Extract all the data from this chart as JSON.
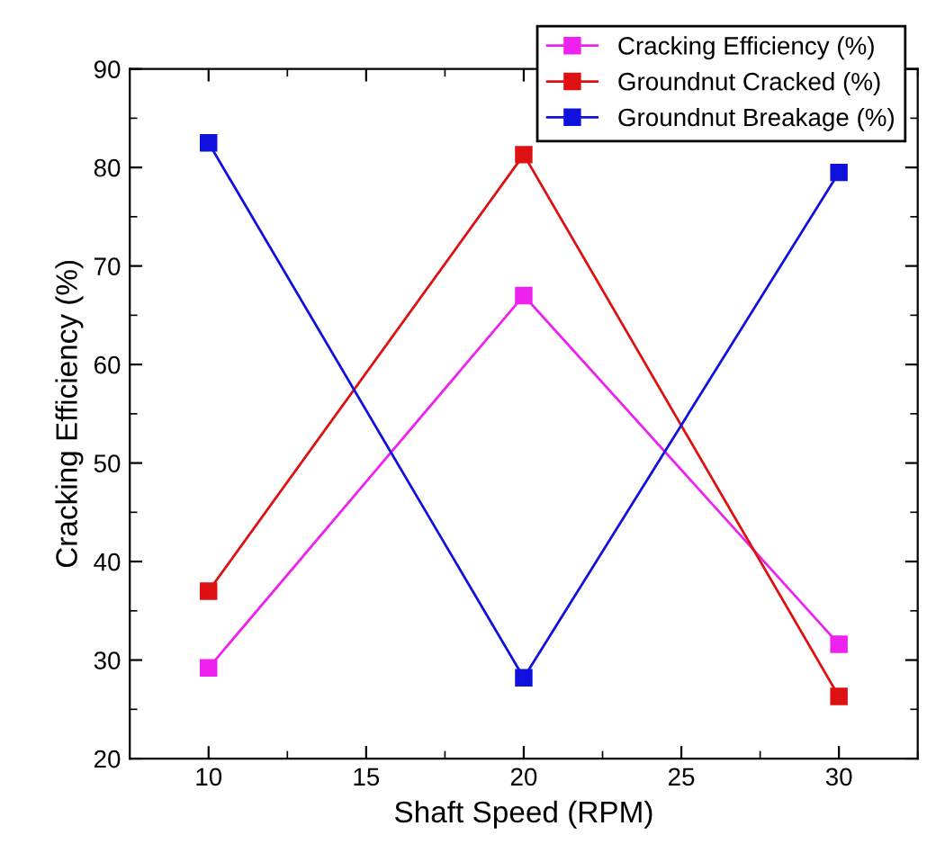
{
  "chart_data": {
    "type": "line",
    "xlabel": "Shaft Speed (RPM)",
    "ylabel": "Cracking Efficiency (%)",
    "x": [
      10,
      20,
      30
    ],
    "xlim": [
      7.5,
      32.5
    ],
    "xticks": [
      10,
      15,
      20,
      25,
      30
    ],
    "ylim": [
      20,
      90
    ],
    "yticks": [
      20,
      30,
      40,
      50,
      60,
      70,
      80,
      90
    ],
    "marker": "square",
    "line_style": "solid",
    "grid": false,
    "legend": "top right",
    "series": [
      {
        "name": "Cracking Efficiency (%)",
        "color": "#ee22ee",
        "values": [
          29.2,
          67,
          31.6
        ]
      },
      {
        "name": "Groundnut Cracked (%)",
        "color": "#dd1111",
        "values": [
          37,
          81.3,
          26.3
        ]
      },
      {
        "name": "Groundnut Breakage (%)",
        "color": "#1111dd",
        "values": [
          82.5,
          28.2,
          79.5
        ]
      }
    ]
  }
}
